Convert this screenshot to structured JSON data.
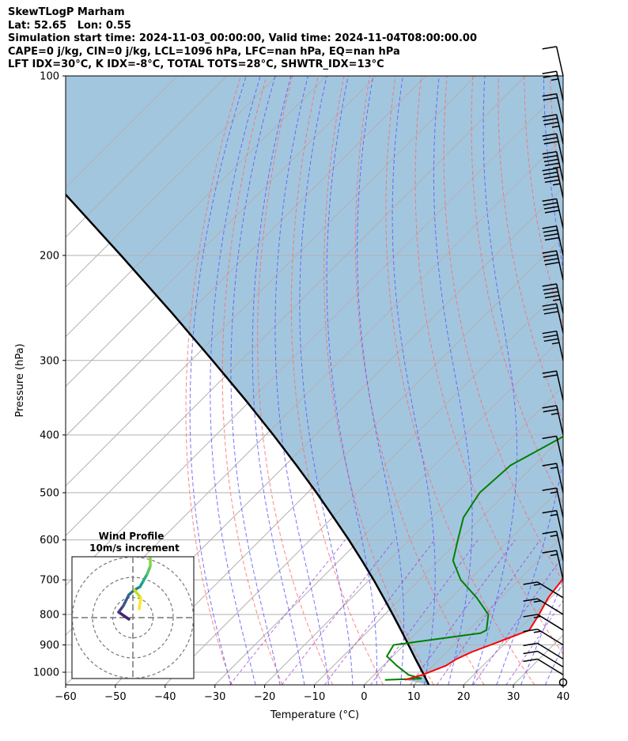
{
  "header": {
    "line1": "SkewTLogP Marham",
    "line2": "Lat: 52.65   Lon: 0.55",
    "line3": "Simulation start time: 2024-11-03_00:00:00, Valid time: 2024-11-04T08:00:00.00",
    "line4": "CAPE=0 j/kg, CIN=0 j/kg, LCL=1096 hPa, LFC=nan hPa, EQ=nan hPa",
    "line5": "LFT IDX=30°C, K IDX=-8°C, TOTAL TOTS=28°C, SHWTR_IDX=13°C"
  },
  "hodograph": {
    "title": "Wind Profile",
    "subtitle": "10m/s increment"
  },
  "chart_data": {
    "type": "skewt",
    "xlabel": "Temperature (°C)",
    "ylabel": "Pressure (hPa)",
    "xlim": [
      -60,
      40
    ],
    "ylim": [
      1050,
      100
    ],
    "x_ticks": [
      "−60",
      "−50",
      "−40",
      "−30",
      "−20",
      "−10",
      "0",
      "10",
      "20",
      "30",
      "40"
    ],
    "x_tick_values": [
      -60,
      -50,
      -40,
      -30,
      -20,
      -10,
      0,
      10,
      20,
      30,
      40
    ],
    "y_ticks": [
      "100",
      "200",
      "300",
      "400",
      "500",
      "600",
      "700",
      "800",
      "900",
      "1000"
    ],
    "y_tick_values": [
      100,
      200,
      300,
      400,
      500,
      600,
      700,
      800,
      900,
      1000
    ],
    "grid": true,
    "colors": {
      "temperature": "#ff0000",
      "dewpoint": "#008000",
      "parcel": "#000000",
      "shade": "#a3c6df",
      "dry_adiabat": "#ff6666",
      "moist_adiabat": "#5a5aff",
      "mixing_ratio": "#9932cc",
      "isotherm": "#b0b0b0"
    },
    "series": [
      {
        "pressure": [
          1030,
          1010,
          975,
          950,
          925,
          900,
          850,
          800,
          750,
          700,
          650,
          600,
          550,
          500,
          450,
          400,
          350,
          300,
          270,
          250,
          220,
          200,
          185,
          175,
          160,
          150,
          140,
          130,
          120,
          110,
          100
        ],
        "values": [
          7.2,
          9.7,
          12.6,
          13.4,
          15.0,
          17.4,
          22.2,
          21.0,
          19.5,
          18.7,
          18.3,
          17.2,
          15.4,
          13.9,
          12.7,
          11.4,
          10.8,
          10.5,
          12.5,
          13.7,
          16.3,
          18.6,
          23.9,
          26.4,
          34.9,
          36.8,
          43.7,
          47.3,
          50.9,
          55.5,
          60.5
        ]
      },
      {
        "pressure": [
          1030,
          1025,
          1010,
          975,
          940,
          900,
          860,
          850,
          800,
          750,
          700,
          650,
          600,
          550,
          500,
          450,
          420,
          380,
          350,
          320,
          300,
          270,
          250,
          220,
          200,
          180,
          160,
          150,
          130,
          120,
          110,
          100
        ],
        "values": [
          3.2,
          10.3,
          6.9,
          2.7,
          -1.2,
          -2.1,
          13.0,
          13.6,
          10.8,
          5.1,
          -1.7,
          -7.1,
          -10.3,
          -13.7,
          -15.4,
          -14.7,
          -11.7,
          -7.5,
          -3.9,
          -4.3,
          -6.8,
          -13.4,
          -14.0,
          -15.5,
          -16.3,
          -16.4,
          -13.5,
          -15.2,
          -9.8,
          -5.3,
          -1.4,
          4.5
        ]
      },
      {
        "pressure": [
          1050,
          1000,
          950,
          900,
          850,
          800,
          750,
          700,
          650,
          600,
          550,
          500,
          450,
          400,
          350,
          300,
          250,
          200,
          150,
          100
        ],
        "values": [
          13.0,
          9.2,
          5.1,
          0.9,
          -3.6,
          -8.4,
          -13.6,
          -19.2,
          -25.4,
          -32.2,
          -39.8,
          -48.2,
          -57.7,
          -68.5,
          -81.0,
          -95.7,
          -113.3,
          -135.2,
          -163.8,
          -205.6
        ]
      }
    ],
    "wind_barbs": {
      "pressure": [
        1040,
        1010,
        980,
        950,
        900,
        850,
        800,
        750,
        700,
        650,
        600,
        550,
        500,
        450,
        400,
        350,
        300,
        270,
        250,
        220,
        200,
        180,
        160,
        150,
        140,
        130,
        120,
        110,
        100
      ],
      "speed_kt": [
        0,
        10,
        10,
        10,
        5,
        5,
        5,
        5,
        5,
        5,
        5,
        5,
        5,
        10,
        15,
        20,
        25,
        30,
        35,
        40,
        40,
        40,
        35,
        35,
        30,
        25,
        20,
        15,
        10
      ]
    },
    "hodograph_rings": [
      10,
      20,
      30
    ]
  }
}
